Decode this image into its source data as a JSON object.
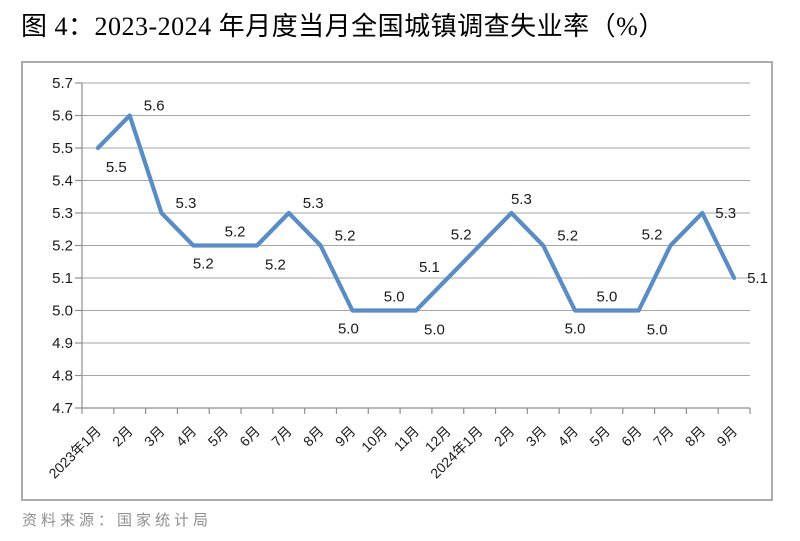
{
  "page": {
    "title": "图 4：2023-2024 年月度当月全国城镇调查失业率（%）",
    "source": "资料来源：国家统计局"
  },
  "colors": {
    "line": "#5B8DC5",
    "grid": "#A6A6A6",
    "axis": "#8E8E8E",
    "data_label": "#1A1A1A",
    "tick_label": "#1A1A1A",
    "border": "#ACACAC",
    "source_text": "#8F8F8F",
    "title_text": "#000000",
    "background": "#FFFFFF"
  },
  "chart_data": {
    "type": "line",
    "title": "图 4：2023-2024 年月度当月全国城镇调查失业率（%）",
    "categories": [
      "2023年1月",
      "2月",
      "3月",
      "4月",
      "5月",
      "6月",
      "7月",
      "8月",
      "9月",
      "10月",
      "11月",
      "12月",
      "2024年1月",
      "2月",
      "3月",
      "4月",
      "5月",
      "6月",
      "7月",
      "8月",
      "9月"
    ],
    "values": [
      5.5,
      5.6,
      5.3,
      5.2,
      5.2,
      5.2,
      5.3,
      5.2,
      5.0,
      5.0,
      5.0,
      5.1,
      5.2,
      5.3,
      5.2,
      5.0,
      5.0,
      5.0,
      5.2,
      5.3,
      5.1
    ],
    "value_label_decimals": 1,
    "label_positions": [
      "below-right",
      "above-right",
      "above-right",
      "below",
      "above",
      "below-right",
      "above-right",
      "above-right",
      "below-left",
      "above",
      "below-right",
      "above-left",
      "above-left",
      "above",
      "above-right",
      "below-center",
      "above-center",
      "below-right",
      "above-left",
      "right",
      "right"
    ],
    "xlabel": "",
    "ylabel": "",
    "ylim": [
      4.7,
      5.7
    ],
    "ytick_step": 0.1,
    "ytick_labels": [
      "4.7",
      "4.8",
      "4.9",
      "5.0",
      "5.1",
      "5.2",
      "5.3",
      "5.4",
      "5.5",
      "5.6",
      "5.7"
    ],
    "grid": true,
    "legend": "none"
  }
}
